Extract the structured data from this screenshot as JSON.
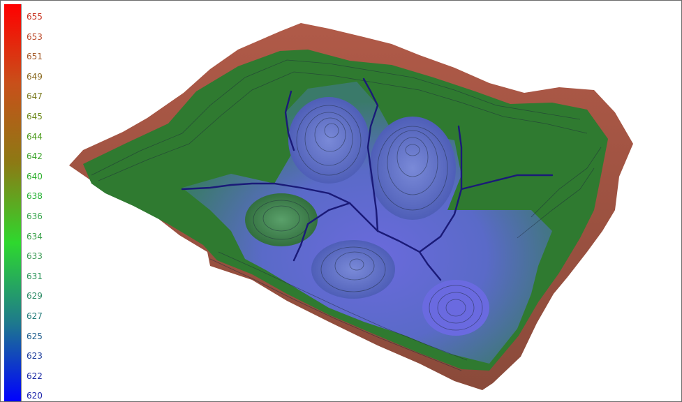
{
  "legend": {
    "ticks": [
      {
        "label": "655",
        "color": "#c8321e"
      },
      {
        "label": "653",
        "color": "#bb4a2a"
      },
      {
        "label": "651",
        "color": "#a55a28"
      },
      {
        "label": "649",
        "color": "#8a6a20"
      },
      {
        "label": "647",
        "color": "#7a7a1e"
      },
      {
        "label": "645",
        "color": "#6c8a1a"
      },
      {
        "label": "644",
        "color": "#4a9a1a"
      },
      {
        "label": "642",
        "color": "#3aa42a"
      },
      {
        "label": "640",
        "color": "#2cb02c"
      },
      {
        "label": "638",
        "color": "#20b030"
      },
      {
        "label": "636",
        "color": "#34a44a"
      },
      {
        "label": "634",
        "color": "#3aa04a"
      },
      {
        "label": "633",
        "color": "#3a9a54"
      },
      {
        "label": "631",
        "color": "#2a9458"
      },
      {
        "label": "629",
        "color": "#2a8a64"
      },
      {
        "label": "627",
        "color": "#207a78"
      },
      {
        "label": "625",
        "color": "#1a5a8a"
      },
      {
        "label": "623",
        "color": "#1a3a9a"
      },
      {
        "label": "622",
        "color": "#1a2aa4"
      },
      {
        "label": "620",
        "color": "#1a22aa"
      }
    ],
    "gradient": [
      "#ff0000",
      "#c8501a",
      "#8c7a14",
      "#2ed82e",
      "#1e7a8c",
      "#0000ff"
    ]
  }
}
